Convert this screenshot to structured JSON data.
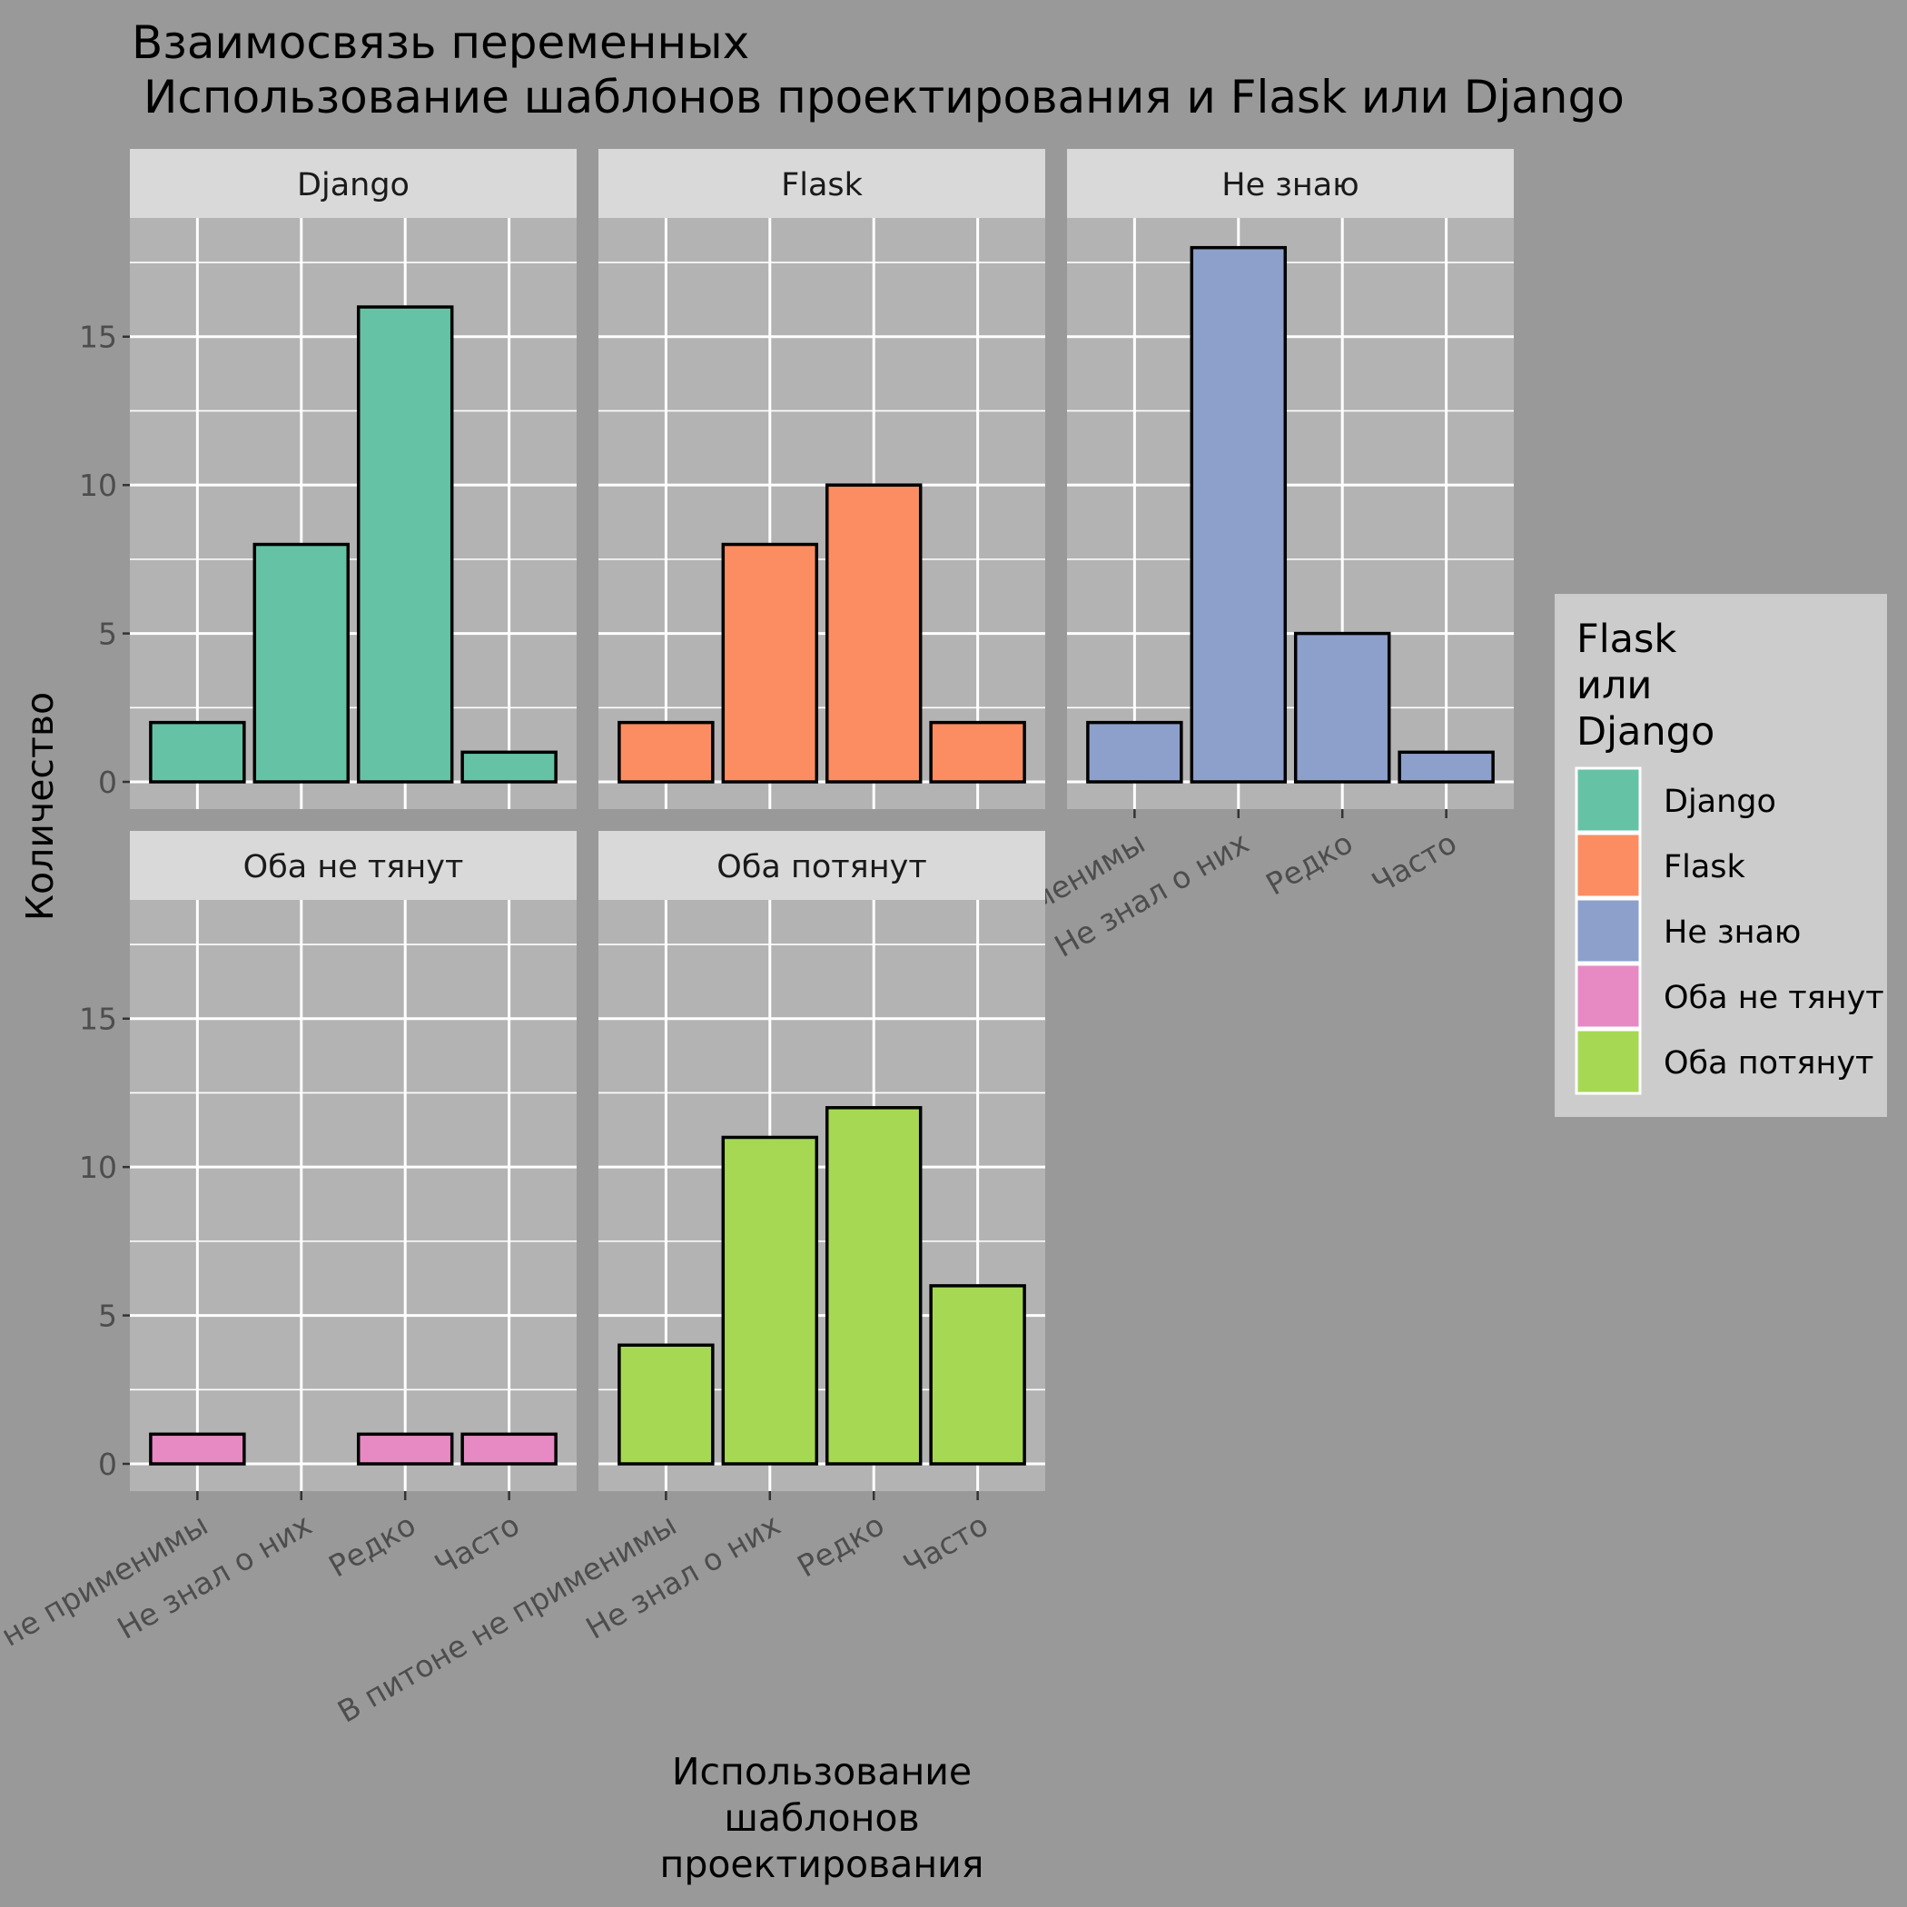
{
  "chart_data": {
    "type": "bar",
    "title_lines": [
      "Взаимосвязь переменных",
      "Использование шаблонов проектирования и Flask или Django"
    ],
    "xlabel_lines": [
      "Использование",
      "шаблонов",
      "проектирования"
    ],
    "ylabel": "Количество",
    "categories": [
      "В питоне не применимы",
      "Не знал о них",
      "Редко",
      "Часто"
    ],
    "yticks": [
      0,
      5,
      10,
      15
    ],
    "ylim": [
      0,
      19
    ],
    "grid": true,
    "legend": {
      "title_lines": [
        "Flask",
        "или",
        "Django"
      ],
      "position": "right"
    },
    "series": [
      {
        "name": "Django",
        "color": "#66C2A5",
        "values": [
          2,
          8,
          16,
          1
        ]
      },
      {
        "name": "Flask",
        "color": "#FC8D62",
        "values": [
          2,
          8,
          10,
          2
        ]
      },
      {
        "name": "Не знаю",
        "color": "#8DA0CB",
        "values": [
          2,
          18,
          5,
          1
        ]
      },
      {
        "name": "Оба не тянут",
        "color": "#E78AC3",
        "values": [
          1,
          0,
          1,
          1
        ]
      },
      {
        "name": "Оба потянут",
        "color": "#A6D854",
        "values": [
          4,
          11,
          12,
          6
        ]
      }
    ]
  }
}
